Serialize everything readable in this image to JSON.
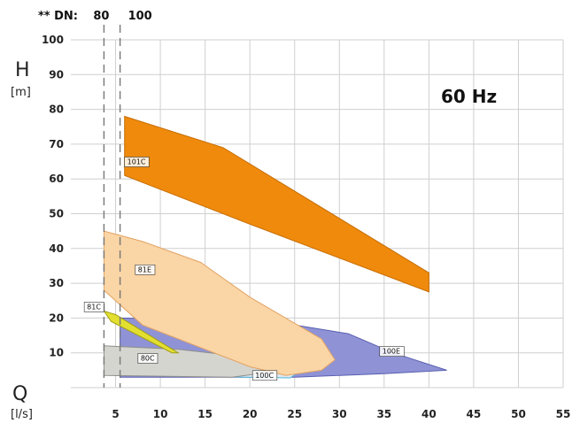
{
  "chart_data": {
    "type": "area",
    "frequency": "60 Hz",
    "y_axis": {
      "letter": "H",
      "unit": "[m]",
      "range": [
        0,
        100
      ],
      "ticks": [
        10,
        20,
        30,
        40,
        50,
        60,
        70,
        80,
        90,
        100
      ]
    },
    "x_axis": {
      "letter": "Q",
      "unit": "[l/s]",
      "range": [
        0,
        55
      ],
      "ticks": [
        5,
        10,
        15,
        20,
        25,
        30,
        35,
        40,
        45,
        50,
        55
      ]
    },
    "grid": true,
    "dn_markers": {
      "prefix": "** DN:",
      "lines": [
        {
          "label": "80",
          "x": 3.7
        },
        {
          "label": "100",
          "x": 5.5
        }
      ]
    },
    "regions": [
      {
        "name": "100E",
        "color": "#8f93d6",
        "stroke": "#5a5fb0",
        "points": [
          [
            5.5,
            20
          ],
          [
            15,
            19.5
          ],
          [
            25,
            18
          ],
          [
            31,
            15.5
          ],
          [
            36,
            10
          ],
          [
            42,
            5
          ],
          [
            35,
            4
          ],
          [
            25,
            3
          ],
          [
            5.5,
            3
          ]
        ],
        "label_at": [
          34.5,
          9.5
        ]
      },
      {
        "name": "100C",
        "color": "#dfe9f1",
        "stroke": "#4fb7d6",
        "points": [
          [
            5.5,
            6
          ],
          [
            15,
            6
          ],
          [
            24,
            5
          ],
          [
            25.3,
            4.2
          ],
          [
            24.5,
            2.8
          ],
          [
            5.5,
            3.5
          ]
        ],
        "label_at": [
          20.3,
          2.6
        ]
      },
      {
        "name": "80C",
        "color": "#d5d5d0",
        "stroke": "#8f8f8a",
        "points": [
          [
            3.7,
            12
          ],
          [
            12,
            11
          ],
          [
            19,
            9
          ],
          [
            24.5,
            6
          ],
          [
            24.5,
            5.2
          ],
          [
            18,
            3
          ],
          [
            3.7,
            3.5
          ]
        ],
        "label_at": [
          7.5,
          7.5
        ]
      },
      {
        "name": "81C",
        "color": "#e2df30",
        "stroke": "#a09c18",
        "points": [
          [
            3.7,
            22
          ],
          [
            5,
            21
          ],
          [
            12,
            10
          ],
          [
            11.3,
            10
          ],
          [
            4.5,
            19
          ]
        ],
        "label_at": [
          1.5,
          22.3
        ]
      },
      {
        "name": "81E",
        "color": "#fad5a5",
        "stroke": "#e2a364",
        "points": [
          [
            3.7,
            45
          ],
          [
            8,
            42
          ],
          [
            14.5,
            36
          ],
          [
            20,
            26
          ],
          [
            28,
            14
          ],
          [
            29.5,
            8
          ],
          [
            28,
            5
          ],
          [
            24,
            3.5
          ],
          [
            20,
            6
          ],
          [
            14,
            12
          ],
          [
            8,
            18
          ],
          [
            3.7,
            28
          ]
        ],
        "label_at": [
          7.2,
          33
        ]
      },
      {
        "name": "101C",
        "color": "#ef8a0c",
        "stroke": "#c66d05",
        "points": [
          [
            6,
            78
          ],
          [
            17,
            69
          ],
          [
            40,
            33
          ],
          [
            40,
            27.5
          ],
          [
            20,
            47
          ],
          [
            6,
            61
          ]
        ],
        "label_at": [
          6,
          64
        ]
      }
    ]
  }
}
